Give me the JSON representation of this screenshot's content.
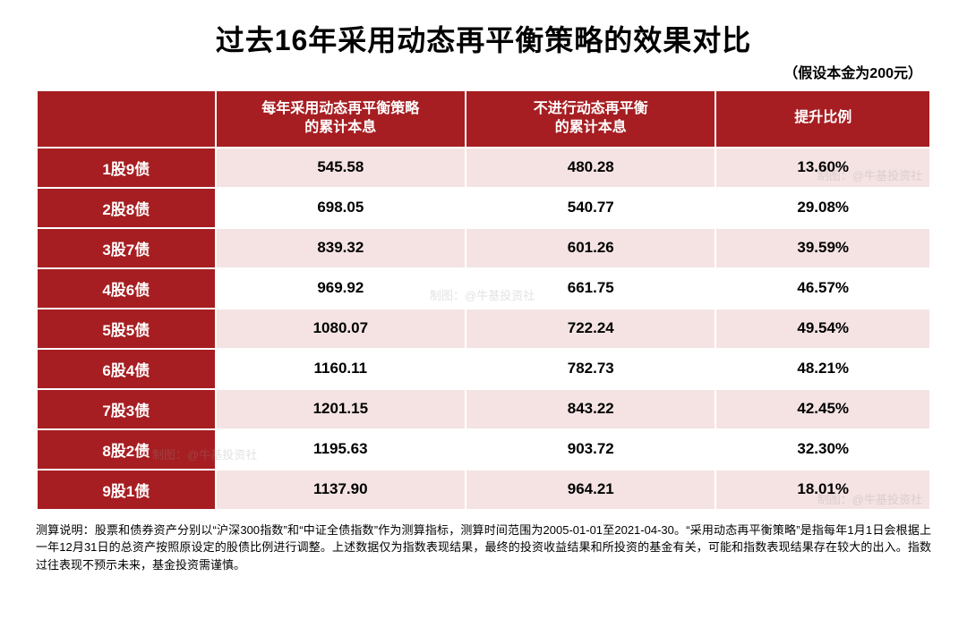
{
  "title": "过去16年采用动态再平衡策略的效果对比",
  "subtitle": "（假设本金为200元）",
  "table": {
    "columns": [
      "",
      "每年采用动态再平衡策略\n的累计本息",
      "不进行动态再平衡\n的累计本息",
      "提升比例"
    ],
    "rows": [
      [
        "1股9债",
        "545.58",
        "480.28",
        "13.60%"
      ],
      [
        "2股8债",
        "698.05",
        "540.77",
        "29.08%"
      ],
      [
        "3股7债",
        "839.32",
        "601.26",
        "39.59%"
      ],
      [
        "4股6债",
        "969.92",
        "661.75",
        "46.57%"
      ],
      [
        "5股5债",
        "1080.07",
        "722.24",
        "49.54%"
      ],
      [
        "6股4债",
        "1160.11",
        "782.73",
        "48.21%"
      ],
      [
        "7股3债",
        "1201.15",
        "843.22",
        "42.45%"
      ],
      [
        "8股2债",
        "1195.63",
        "903.72",
        "32.30%"
      ],
      [
        "9股1债",
        "1137.90",
        "964.21",
        "18.01%"
      ]
    ],
    "header_bg": "#a61e22",
    "header_fg": "#ffffff",
    "row_label_bg": "#a61e22",
    "row_label_fg": "#ffffff",
    "odd_row_bg": "#f5e3e3",
    "even_row_bg": "#ffffff",
    "border_color": "#ffffff",
    "font_weight": 700,
    "cell_fontsize": 17,
    "header_fontsize": 16
  },
  "footnote": "测算说明：股票和债券资产分别以“沪深300指数”和“中证全债指数”作为测算指标，测算时间范围为2005-01-01至2021-04-30。“采用动态再平衡策略”是指每年1月1日会根据上一年12月31日的总资产按照原设定的股债比例进行调整。上述数据仅为指数表现结果，最终的投资收益结果和所投资的基金有关，可能和指数表现结果存在较大的出入。指数过往表现不预示未来，基金投资需谨慎。",
  "watermark_text": "制图：@牛基投资社",
  "colors": {
    "background": "#ffffff",
    "title_color": "#000000",
    "text_color": "#000000"
  },
  "typography": {
    "title_fontsize": 32,
    "title_weight": 900,
    "subtitle_fontsize": 16,
    "footnote_fontsize": 13
  }
}
